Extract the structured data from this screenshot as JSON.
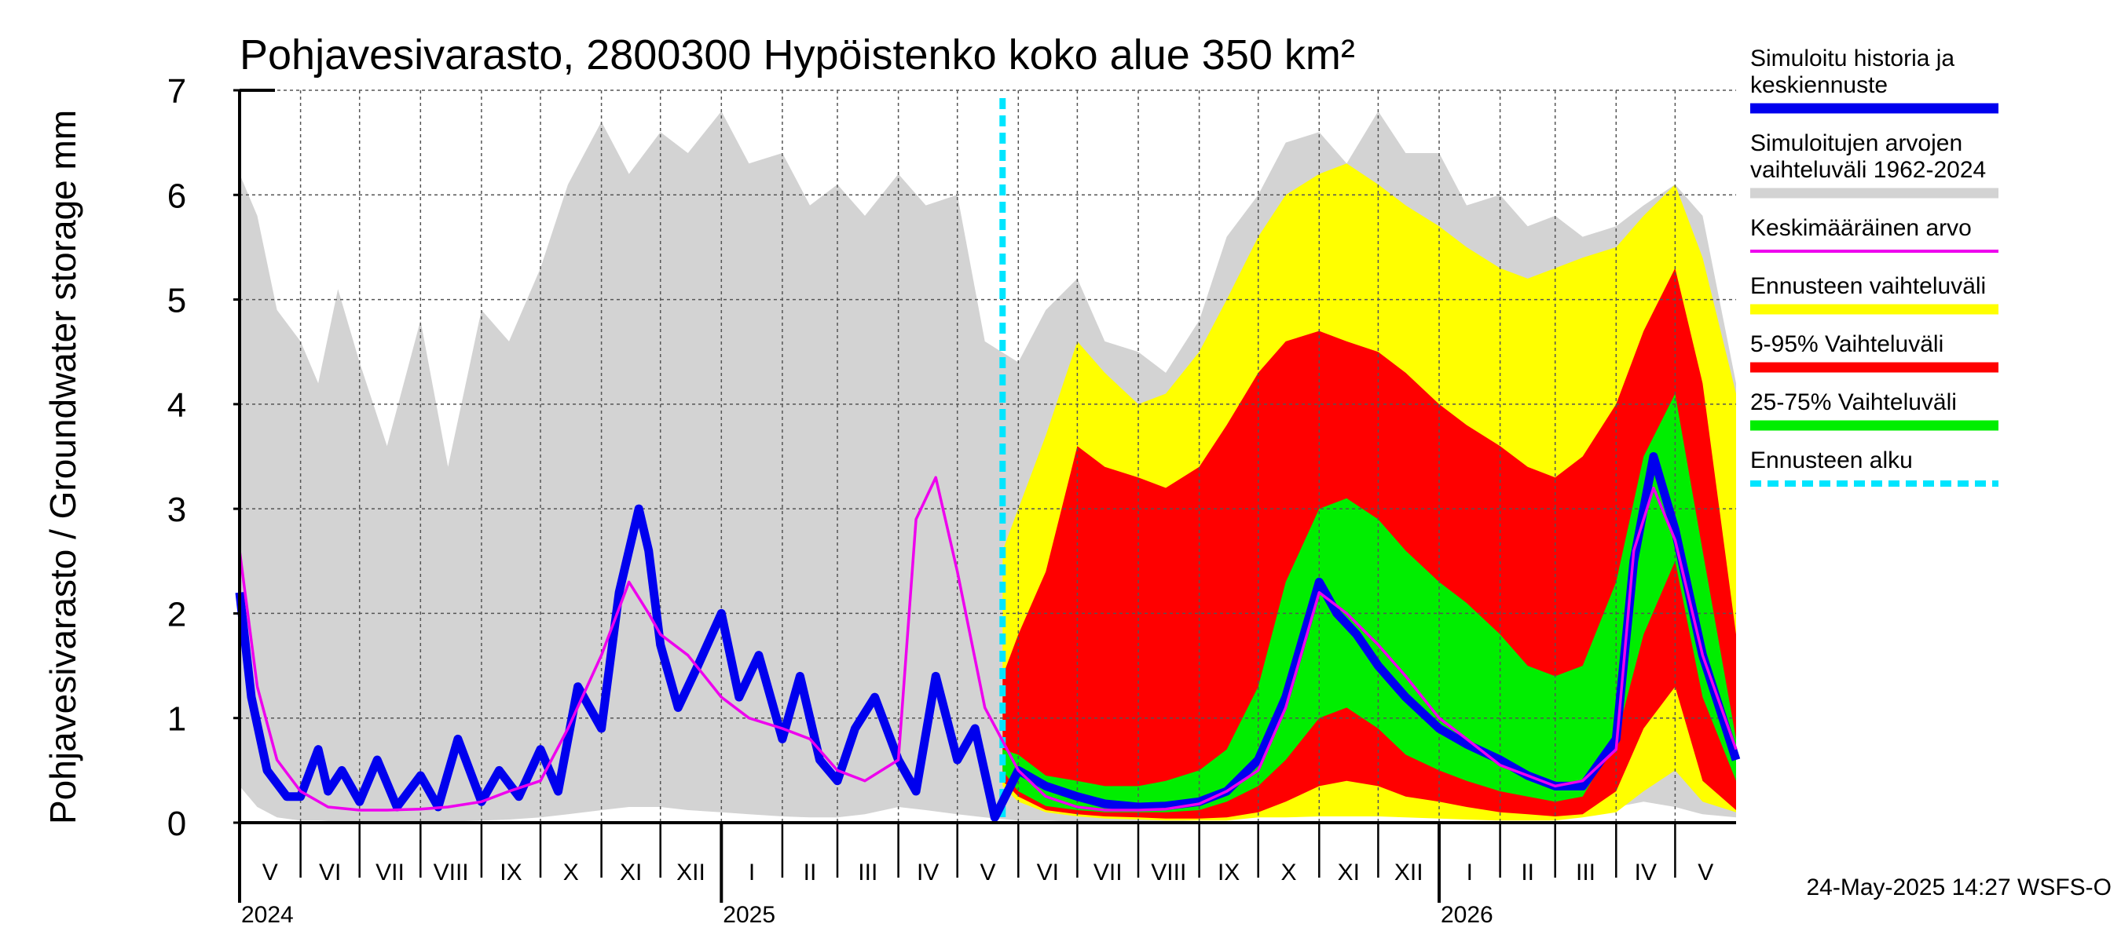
{
  "chart_data": {
    "type": "area",
    "title": "Pohjavesivarasto, 2800300 Hypöistenko koko alue 350 km²",
    "ylabel": "Pohjavesivarasto / Groundwater storage   mm",
    "ylim": [
      0,
      7
    ],
    "yticks": [
      "0",
      "1",
      "2",
      "3",
      "4",
      "5",
      "6",
      "7"
    ],
    "xlim": [
      "2024-05-01",
      "2026-06-01"
    ],
    "forecast_start": "2025-05-24",
    "grid": true,
    "legend_position": "right",
    "colors": {
      "history": "#0000ee",
      "range_hist": "#d3d3d3",
      "mean": "#ee00ee",
      "forecast_range": "#ffff00",
      "p5_95": "#ff0000",
      "p25_75": "#00ee00",
      "forecast_start": "#00e5ff"
    },
    "months": [
      {
        "label": "V",
        "start": "2024-05-01"
      },
      {
        "label": "VI",
        "start": "2024-06-01"
      },
      {
        "label": "VII",
        "start": "2024-07-01"
      },
      {
        "label": "VIII",
        "start": "2024-08-01"
      },
      {
        "label": "IX",
        "start": "2024-09-01"
      },
      {
        "label": "X",
        "start": "2024-10-01"
      },
      {
        "label": "XI",
        "start": "2024-11-01"
      },
      {
        "label": "XII",
        "start": "2024-12-01"
      },
      {
        "label": "I",
        "start": "2025-01-01"
      },
      {
        "label": "II",
        "start": "2025-02-01"
      },
      {
        "label": "III",
        "start": "2025-03-01"
      },
      {
        "label": "IV",
        "start": "2025-04-01"
      },
      {
        "label": "V",
        "start": "2025-05-01"
      },
      {
        "label": "VI",
        "start": "2025-06-01"
      },
      {
        "label": "VII",
        "start": "2025-07-01"
      },
      {
        "label": "VIII",
        "start": "2025-08-01"
      },
      {
        "label": "IX",
        "start": "2025-09-01"
      },
      {
        "label": "X",
        "start": "2025-10-01"
      },
      {
        "label": "XI",
        "start": "2025-11-01"
      },
      {
        "label": "XII",
        "start": "2025-12-01"
      },
      {
        "label": "I",
        "start": "2026-01-01"
      },
      {
        "label": "II",
        "start": "2026-02-01"
      },
      {
        "label": "III",
        "start": "2026-03-01"
      },
      {
        "label": "IV",
        "start": "2026-04-01"
      },
      {
        "label": "V",
        "start": "2026-05-01"
      }
    ],
    "years": [
      {
        "label": "2024",
        "date": "2024-05-01"
      },
      {
        "label": "2025",
        "date": "2025-01-01"
      },
      {
        "label": "2026",
        "date": "2026-01-01"
      }
    ],
    "series": [
      {
        "name": "Simuloitujen arvojen vaihteluväli 1962-2024",
        "key": "range_hist",
        "kind": "band",
        "x": [
          "2024-05-01",
          "2024-05-10",
          "2024-05-20",
          "2024-06-01",
          "2024-06-10",
          "2024-06-20",
          "2024-07-01",
          "2024-07-15",
          "2024-08-01",
          "2024-08-15",
          "2024-09-01",
          "2024-09-15",
          "2024-10-01",
          "2024-10-15",
          "2024-11-01",
          "2024-11-15",
          "2024-12-01",
          "2024-12-15",
          "2025-01-01",
          "2025-01-15",
          "2025-02-01",
          "2025-02-15",
          "2025-03-01",
          "2025-03-15",
          "2025-04-01",
          "2025-04-15",
          "2025-05-01",
          "2025-05-15",
          "2025-06-01",
          "2025-06-15",
          "2025-07-01",
          "2025-07-15",
          "2025-08-01",
          "2025-08-15",
          "2025-09-01",
          "2025-09-15",
          "2025-10-01",
          "2025-10-15",
          "2025-11-01",
          "2025-11-15",
          "2025-12-01",
          "2025-12-15",
          "2026-01-01",
          "2026-01-15",
          "2026-02-01",
          "2026-02-15",
          "2026-03-01",
          "2026-03-15",
          "2026-04-01",
          "2026-04-15",
          "2026-05-01",
          "2026-05-15",
          "2026-06-01"
        ],
        "upper": [
          6.2,
          5.8,
          4.9,
          4.6,
          4.2,
          5.1,
          4.4,
          3.6,
          4.8,
          3.4,
          4.9,
          4.6,
          5.3,
          6.1,
          6.7,
          6.2,
          6.6,
          6.4,
          6.8,
          6.3,
          6.4,
          5.9,
          6.1,
          5.8,
          6.2,
          5.9,
          6.0,
          4.6,
          4.4,
          4.9,
          5.2,
          4.6,
          4.5,
          4.3,
          4.8,
          5.6,
          6.0,
          6.5,
          6.6,
          6.3,
          6.8,
          6.4,
          6.4,
          5.9,
          6.0,
          5.7,
          5.8,
          5.6,
          5.7,
          5.9,
          6.1,
          5.8,
          4.2
        ],
        "lower": [
          0.35,
          0.15,
          0.05,
          0.02,
          0.02,
          0.01,
          0.01,
          0.01,
          0.01,
          0.01,
          0.02,
          0.03,
          0.05,
          0.08,
          0.12,
          0.15,
          0.15,
          0.12,
          0.1,
          0.08,
          0.06,
          0.05,
          0.05,
          0.08,
          0.15,
          0.12,
          0.08,
          0.05,
          0.02,
          0.02,
          0.01,
          0.01,
          0.01,
          0.01,
          0.02,
          0.03,
          0.05,
          0.08,
          0.12,
          0.12,
          0.12,
          0.1,
          0.08,
          0.06,
          0.05,
          0.05,
          0.06,
          0.08,
          0.15,
          0.2,
          0.15,
          0.08,
          0.05
        ]
      },
      {
        "name": "Ennusteen vaihteluväli",
        "key": "forecast_range",
        "kind": "band",
        "x": [
          "2025-05-24",
          "2025-06-01",
          "2025-06-15",
          "2025-07-01",
          "2025-07-15",
          "2025-08-01",
          "2025-08-15",
          "2025-09-01",
          "2025-09-15",
          "2025-10-01",
          "2025-10-15",
          "2025-11-01",
          "2025-11-15",
          "2025-12-01",
          "2025-12-15",
          "2026-01-01",
          "2026-01-15",
          "2026-02-01",
          "2026-02-15",
          "2026-03-01",
          "2026-03-15",
          "2026-04-01",
          "2026-04-15",
          "2026-05-01",
          "2026-05-15",
          "2026-06-01"
        ],
        "upper": [
          2.6,
          3.0,
          3.7,
          4.6,
          4.3,
          4.0,
          4.1,
          4.5,
          5.0,
          5.6,
          6.0,
          6.2,
          6.3,
          6.1,
          5.9,
          5.7,
          5.5,
          5.3,
          5.2,
          5.3,
          5.4,
          5.5,
          5.8,
          6.1,
          5.4,
          4.1
        ],
        "lower": [
          0.35,
          0.2,
          0.1,
          0.06,
          0.04,
          0.03,
          0.02,
          0.02,
          0.02,
          0.05,
          0.05,
          0.06,
          0.06,
          0.06,
          0.05,
          0.04,
          0.03,
          0.02,
          0.02,
          0.02,
          0.05,
          0.1,
          0.3,
          0.5,
          0.2,
          0.1
        ]
      },
      {
        "name": "5-95% Vaihteluväli",
        "key": "p5_95",
        "kind": "band",
        "x": [
          "2025-05-24",
          "2025-06-01",
          "2025-06-15",
          "2025-07-01",
          "2025-07-15",
          "2025-08-01",
          "2025-08-15",
          "2025-09-01",
          "2025-09-15",
          "2025-10-01",
          "2025-10-15",
          "2025-11-01",
          "2025-11-15",
          "2025-12-01",
          "2025-12-15",
          "2026-01-01",
          "2026-01-15",
          "2026-02-01",
          "2026-02-15",
          "2026-03-01",
          "2026-03-15",
          "2026-04-01",
          "2026-04-15",
          "2026-05-01",
          "2026-05-15",
          "2026-06-01"
        ],
        "upper": [
          1.4,
          1.8,
          2.4,
          3.6,
          3.4,
          3.3,
          3.2,
          3.4,
          3.8,
          4.3,
          4.6,
          4.7,
          4.6,
          4.5,
          4.3,
          4.0,
          3.8,
          3.6,
          3.4,
          3.3,
          3.5,
          4.0,
          4.7,
          5.3,
          4.2,
          1.8
        ],
        "lower": [
          0.4,
          0.25,
          0.12,
          0.08,
          0.06,
          0.05,
          0.04,
          0.04,
          0.05,
          0.1,
          0.2,
          0.35,
          0.4,
          0.35,
          0.25,
          0.2,
          0.15,
          0.1,
          0.08,
          0.06,
          0.08,
          0.3,
          0.9,
          1.3,
          0.4,
          0.12
        ]
      },
      {
        "name": "25-75% Vaihteluväli",
        "key": "p25_75",
        "kind": "band",
        "x": [
          "2025-05-24",
          "2025-06-01",
          "2025-06-15",
          "2025-07-01",
          "2025-07-15",
          "2025-08-01",
          "2025-08-15",
          "2025-09-01",
          "2025-09-15",
          "2025-10-01",
          "2025-10-15",
          "2025-11-01",
          "2025-11-15",
          "2025-12-01",
          "2025-12-15",
          "2026-01-01",
          "2026-01-15",
          "2026-02-01",
          "2026-02-15",
          "2026-03-01",
          "2026-03-15",
          "2026-04-01",
          "2026-04-15",
          "2026-05-01",
          "2026-05-15",
          "2026-06-01"
        ],
        "upper": [
          0.7,
          0.65,
          0.45,
          0.4,
          0.35,
          0.35,
          0.4,
          0.5,
          0.7,
          1.3,
          2.3,
          3.0,
          3.1,
          2.9,
          2.6,
          2.3,
          2.1,
          1.8,
          1.5,
          1.4,
          1.5,
          2.3,
          3.5,
          4.1,
          2.6,
          0.8
        ],
        "lower": [
          0.5,
          0.3,
          0.16,
          0.12,
          0.1,
          0.1,
          0.1,
          0.12,
          0.2,
          0.35,
          0.6,
          1.0,
          1.1,
          0.9,
          0.65,
          0.5,
          0.4,
          0.3,
          0.25,
          0.2,
          0.25,
          0.8,
          1.8,
          2.5,
          1.2,
          0.4
        ]
      },
      {
        "name": "Simuloitu historia ja keskiennuste",
        "key": "history",
        "kind": "line",
        "x": [
          "2024-05-01",
          "2024-05-07",
          "2024-05-15",
          "2024-05-25",
          "2024-06-01",
          "2024-06-10",
          "2024-06-15",
          "2024-06-22",
          "2024-07-01",
          "2024-07-10",
          "2024-07-20",
          "2024-08-01",
          "2024-08-10",
          "2024-08-20",
          "2024-09-01",
          "2024-09-10",
          "2024-09-20",
          "2024-10-01",
          "2024-10-10",
          "2024-10-20",
          "2024-11-01",
          "2024-11-10",
          "2024-11-20",
          "2024-11-25",
          "2024-12-01",
          "2024-12-10",
          "2024-12-20",
          "2025-01-01",
          "2025-01-10",
          "2025-01-20",
          "2025-02-01",
          "2025-02-10",
          "2025-02-20",
          "2025-03-01",
          "2025-03-10",
          "2025-03-20",
          "2025-04-01",
          "2025-04-10",
          "2025-04-20",
          "2025-05-01",
          "2025-05-10",
          "2025-05-20",
          "2025-06-01",
          "2025-06-15",
          "2025-07-01",
          "2025-07-15",
          "2025-08-01",
          "2025-08-15",
          "2025-09-01",
          "2025-09-15",
          "2025-10-01",
          "2025-10-15",
          "2025-11-01",
          "2025-11-10",
          "2025-11-20",
          "2025-12-01",
          "2025-12-15",
          "2026-01-01",
          "2026-01-15",
          "2026-02-01",
          "2026-02-15",
          "2026-03-01",
          "2026-03-15",
          "2026-04-01",
          "2026-04-10",
          "2026-04-20",
          "2026-05-01",
          "2026-05-15",
          "2026-06-01"
        ],
        "y": [
          2.2,
          1.2,
          0.5,
          0.25,
          0.25,
          0.7,
          0.3,
          0.5,
          0.2,
          0.6,
          0.15,
          0.45,
          0.15,
          0.8,
          0.2,
          0.5,
          0.25,
          0.7,
          0.3,
          1.3,
          0.9,
          2.2,
          3.0,
          2.6,
          1.7,
          1.1,
          1.5,
          2.0,
          1.2,
          1.6,
          0.8,
          1.4,
          0.6,
          0.4,
          0.9,
          1.2,
          0.6,
          0.3,
          1.4,
          0.6,
          0.9,
          0.05,
          0.5,
          0.35,
          0.25,
          0.18,
          0.15,
          0.16,
          0.2,
          0.3,
          0.6,
          1.2,
          2.3,
          2.0,
          1.8,
          1.5,
          1.2,
          0.9,
          0.75,
          0.6,
          0.45,
          0.35,
          0.35,
          0.8,
          2.5,
          3.5,
          2.8,
          1.6,
          0.6
        ]
      },
      {
        "name": "Keskimääräinen arvo",
        "key": "mean",
        "kind": "line",
        "x": [
          "2024-05-01",
          "2024-05-10",
          "2024-05-20",
          "2024-06-01",
          "2024-06-15",
          "2024-07-01",
          "2024-07-15",
          "2024-08-01",
          "2024-08-15",
          "2024-09-01",
          "2024-09-15",
          "2024-10-01",
          "2024-10-15",
          "2024-11-01",
          "2024-11-15",
          "2024-11-25",
          "2024-12-01",
          "2024-12-15",
          "2025-01-01",
          "2025-01-15",
          "2025-02-01",
          "2025-02-15",
          "2025-03-01",
          "2025-03-15",
          "2025-04-01",
          "2025-04-10",
          "2025-04-20",
          "2025-05-01",
          "2025-05-15",
          "2025-06-01",
          "2025-06-15",
          "2025-07-01",
          "2025-07-15",
          "2025-08-01",
          "2025-08-15",
          "2025-09-01",
          "2025-09-15",
          "2025-10-01",
          "2025-10-15",
          "2025-11-01",
          "2025-11-15",
          "2025-12-01",
          "2025-12-15",
          "2026-01-01",
          "2026-01-15",
          "2026-02-01",
          "2026-02-15",
          "2026-03-01",
          "2026-03-15",
          "2026-04-01",
          "2026-04-10",
          "2026-04-20",
          "2026-05-01",
          "2026-05-15",
          "2026-06-01"
        ],
        "y": [
          2.6,
          1.3,
          0.6,
          0.3,
          0.15,
          0.12,
          0.12,
          0.13,
          0.15,
          0.2,
          0.3,
          0.4,
          0.9,
          1.6,
          2.3,
          2.0,
          1.8,
          1.6,
          1.2,
          1.0,
          0.9,
          0.8,
          0.5,
          0.4,
          0.6,
          2.9,
          3.3,
          2.4,
          1.1,
          0.5,
          0.25,
          0.15,
          0.12,
          0.12,
          0.13,
          0.18,
          0.3,
          0.5,
          1.1,
          2.2,
          2.0,
          1.7,
          1.4,
          1.0,
          0.8,
          0.55,
          0.45,
          0.35,
          0.4,
          0.7,
          2.6,
          3.2,
          2.7,
          1.6,
          0.7
        ]
      }
    ],
    "legend": [
      {
        "lines": [
          "Simuloitu historia ja",
          "keskiennuste"
        ],
        "key": "history",
        "style": "thick"
      },
      {
        "lines": [
          "Simuloitujen arvojen",
          "vaihteluväli 1962-2024"
        ],
        "key": "range_hist",
        "style": "thick"
      },
      {
        "lines": [
          "Keskimääräinen arvo"
        ],
        "key": "mean",
        "style": "thin"
      },
      {
        "lines": [
          "Ennusteen vaihteluväli"
        ],
        "key": "forecast_range",
        "style": "thick"
      },
      {
        "lines": [
          "5-95% Vaihteluväli"
        ],
        "key": "p5_95",
        "style": "thick"
      },
      {
        "lines": [
          "25-75% Vaihteluväli"
        ],
        "key": "p25_75",
        "style": "thick"
      },
      {
        "lines": [
          "Ennusteen alku"
        ],
        "key": "forecast_start",
        "style": "dashed"
      }
    ],
    "footer": "24-May-2025 14:27 WSFS-O"
  }
}
